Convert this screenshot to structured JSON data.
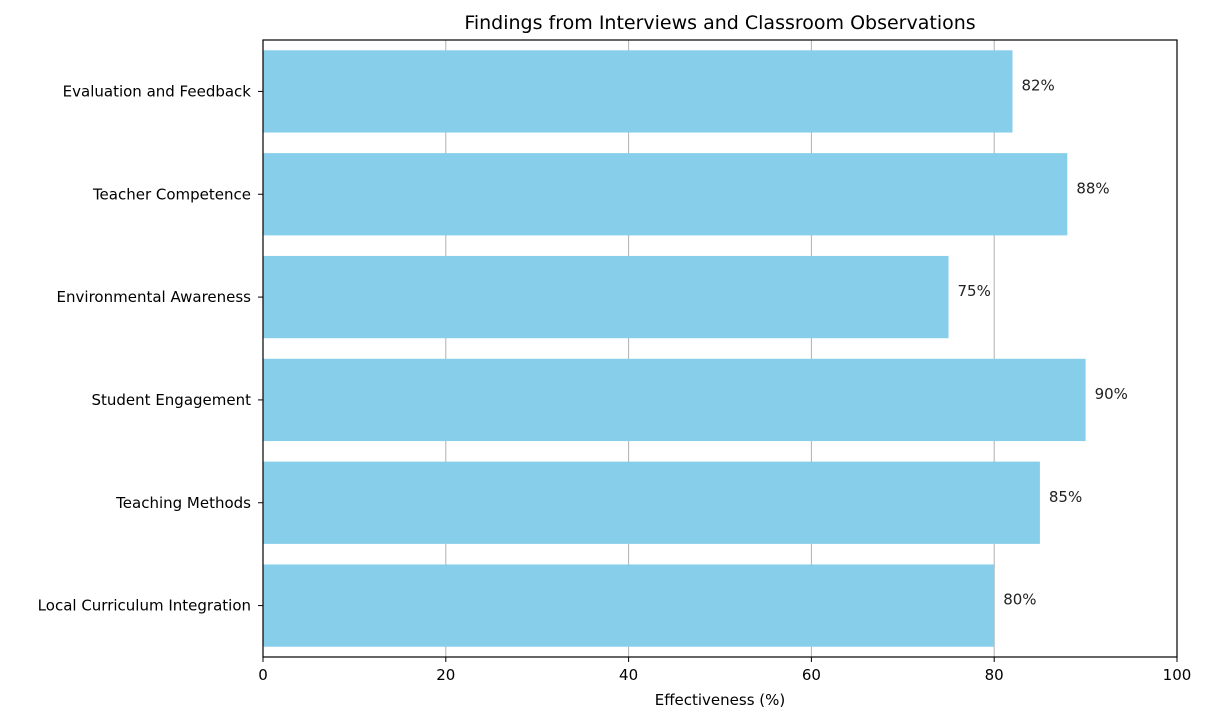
{
  "chart_data": {
    "type": "bar",
    "orientation": "horizontal",
    "title": "Findings from Interviews and Classroom Observations",
    "xlabel": "Effectiveness (%)",
    "ylabel": "",
    "categories": [
      "Local Curriculum Integration",
      "Teaching Methods",
      "Student Engagement",
      "Environmental Awareness",
      "Teacher Competence",
      "Evaluation and Feedback"
    ],
    "values": [
      80,
      85,
      90,
      75,
      88,
      82
    ],
    "data_labels": [
      "80%",
      "85%",
      "90%",
      "75%",
      "88%",
      "82%"
    ],
    "xlim": [
      0,
      100
    ],
    "xticks": [
      0,
      20,
      40,
      60,
      80,
      100
    ],
    "xtick_labels": [
      "0",
      "20",
      "40",
      "60",
      "80",
      "100"
    ],
    "grid": "x-axis vertical lines",
    "bar_color": "#87CEEB",
    "grid_color": "#b0b0b0",
    "axis_color": "#000000"
  }
}
